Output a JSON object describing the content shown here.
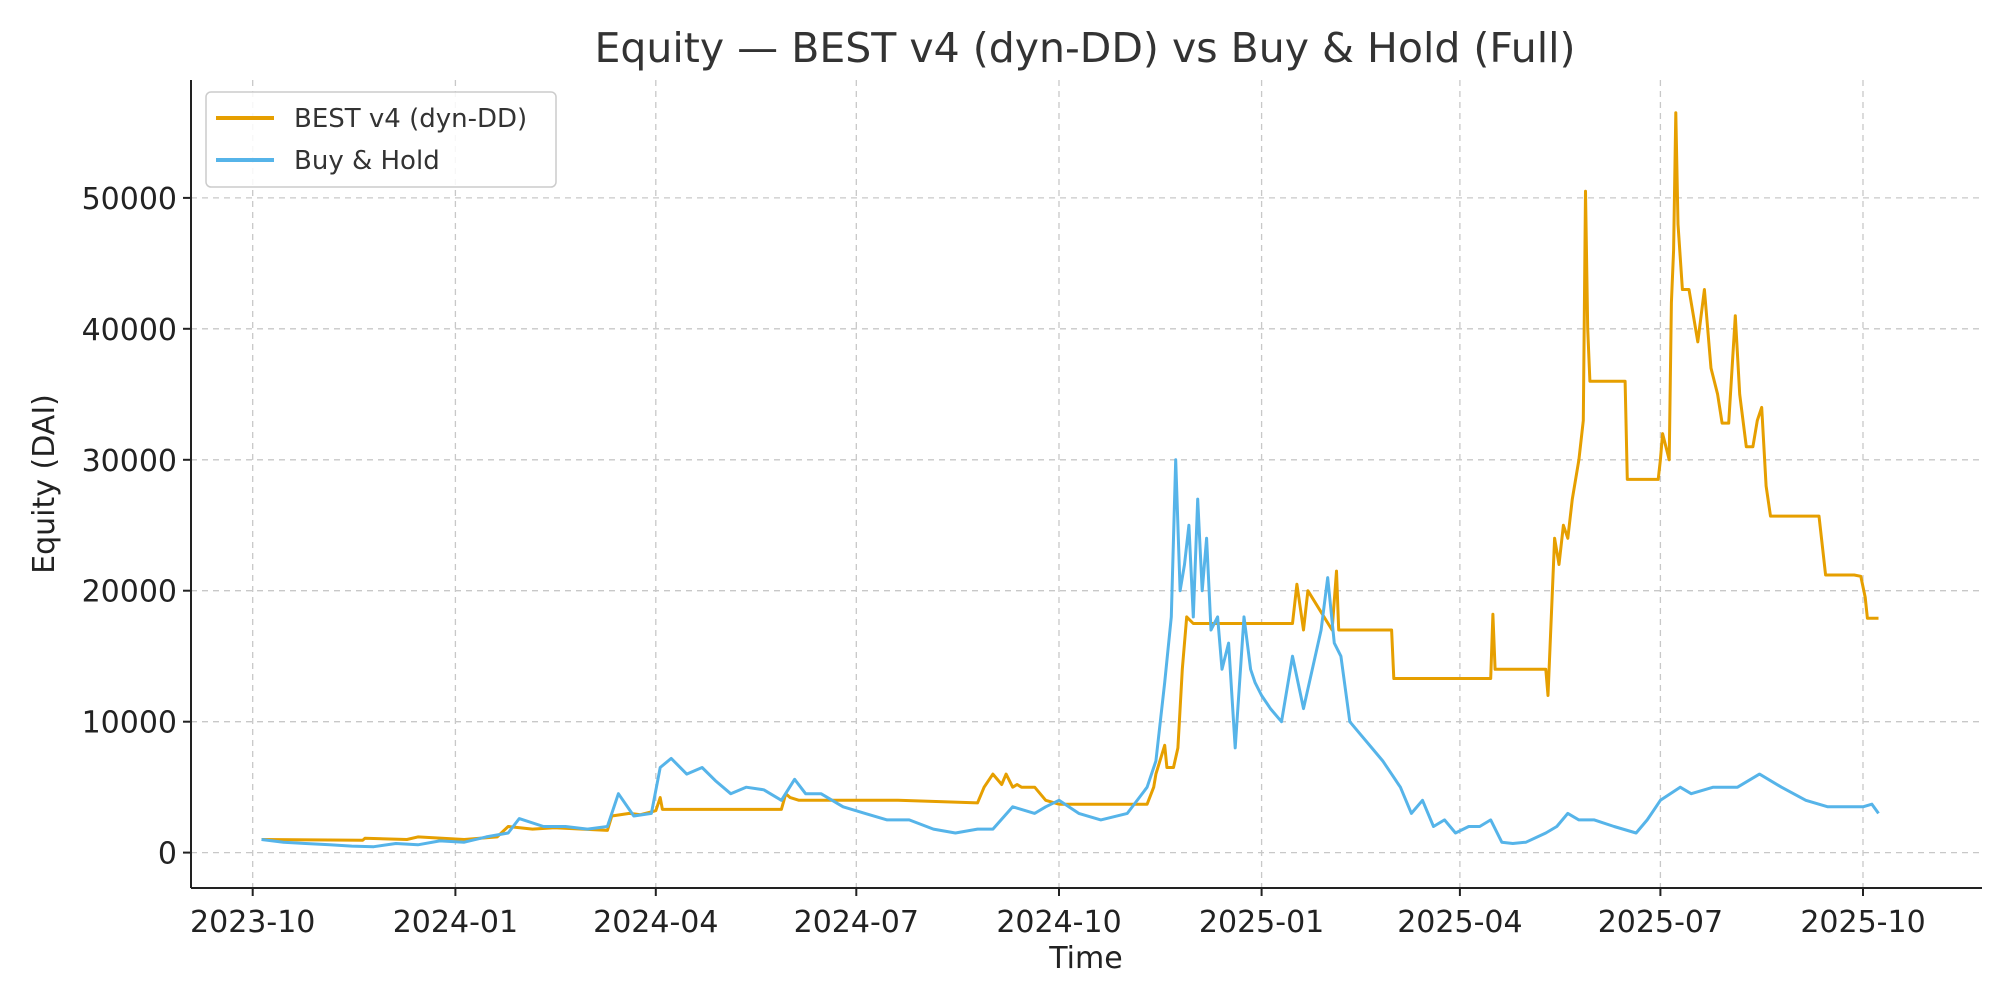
{
  "colors": {
    "strategy": "#E69F00",
    "buy_hold": "#56B4E9",
    "grid": "#c8c8c8",
    "axis": "#222222"
  },
  "chart_data": {
    "type": "line",
    "title": "Equity — BEST v4 (dyn-DD) vs Buy & Hold (Full)",
    "xlabel": "Time",
    "ylabel": "Equity (DAI)",
    "x_ticks": [
      "2023-10-01",
      "2024-01-01",
      "2024-04-01",
      "2024-07-01",
      "2024-10-01",
      "2025-01-01",
      "2025-04-01",
      "2025-07-01",
      "2025-10-01"
    ],
    "x_tick_labels": [
      "2023-10",
      "2024-01",
      "2024-04",
      "2024-07",
      "2024-10",
      "2025-01",
      "2025-04",
      "2025-07",
      "2025-10"
    ],
    "y_ticks": [
      0,
      10000,
      20000,
      30000,
      40000,
      50000
    ],
    "y_tick_labels": [
      "0",
      "10000",
      "20000",
      "30000",
      "40000",
      "50000"
    ],
    "xlim": [
      "2023-09-03",
      "2025-11-24"
    ],
    "ylim": [
      -2700,
      59000
    ],
    "grid": true,
    "legend_position": "top-left",
    "series": [
      {
        "name": "BEST v4 (dyn-DD)",
        "color": "#E69F00",
        "x": [
          "2023-10-05",
          "2023-11-20",
          "2023-11-21",
          "2023-12-10",
          "2023-12-15",
          "2024-01-05",
          "2024-01-20",
          "2024-01-25",
          "2024-02-05",
          "2024-02-15",
          "2024-03-10",
          "2024-03-12",
          "2024-03-20",
          "2024-03-25",
          "2024-04-01",
          "2024-04-03",
          "2024-04-04",
          "2024-04-10",
          "2024-05-28",
          "2024-05-30",
          "2024-06-01",
          "2024-06-05",
          "2024-07-20",
          "2024-08-25",
          "2024-08-28",
          "2024-09-01",
          "2024-09-05",
          "2024-09-07",
          "2024-09-10",
          "2024-09-12",
          "2024-09-14",
          "2024-09-20",
          "2024-09-25",
          "2024-10-01",
          "2024-11-10",
          "2024-11-13",
          "2024-11-14",
          "2024-11-18",
          "2024-11-19",
          "2024-11-22",
          "2024-11-24",
          "2024-11-26",
          "2024-11-28",
          "2024-12-01",
          "2024-12-15",
          "2025-01-15",
          "2025-01-17",
          "2025-01-20",
          "2025-01-22",
          "2025-02-02",
          "2025-02-04",
          "2025-02-05",
          "2025-02-07",
          "2025-03-01",
          "2025-03-02",
          "2025-04-15",
          "2025-04-16",
          "2025-04-17",
          "2025-05-10",
          "2025-05-11",
          "2025-05-13",
          "2025-05-14",
          "2025-05-16",
          "2025-05-18",
          "2025-05-20",
          "2025-05-22",
          "2025-05-25",
          "2025-05-27",
          "2025-05-28",
          "2025-05-29",
          "2025-05-30",
          "2025-06-15",
          "2025-06-16",
          "2025-06-30",
          "2025-07-01",
          "2025-07-02",
          "2025-07-05",
          "2025-07-06",
          "2025-07-07",
          "2025-07-08",
          "2025-07-09",
          "2025-07-11",
          "2025-07-12",
          "2025-07-14",
          "2025-07-18",
          "2025-07-21",
          "2025-07-24",
          "2025-07-27",
          "2025-07-29",
          "2025-08-01",
          "2025-08-04",
          "2025-08-06",
          "2025-08-09",
          "2025-08-12",
          "2025-08-14",
          "2025-08-16",
          "2025-08-18",
          "2025-08-20",
          "2025-09-10",
          "2025-09-11",
          "2025-09-14",
          "2025-09-15",
          "2025-09-20",
          "2025-09-27",
          "2025-09-30",
          "2025-10-02",
          "2025-10-03",
          "2025-10-08"
        ],
        "y": [
          1000,
          950,
          1100,
          1000,
          1200,
          1000,
          1200,
          2000,
          1800,
          1900,
          1700,
          2800,
          3000,
          2900,
          3200,
          4200,
          3300,
          3300,
          3300,
          4500,
          4200,
          4000,
          4000,
          3800,
          5000,
          6000,
          5200,
          6000,
          5000,
          5200,
          5000,
          5000,
          4000,
          3700,
          3700,
          5000,
          6000,
          8200,
          6500,
          6500,
          8000,
          14000,
          18000,
          17500,
          17500,
          17500,
          20500,
          17000,
          20000,
          17000,
          21500,
          17000,
          17000,
          17000,
          13300,
          13300,
          18200,
          14000,
          14000,
          12000,
          20000,
          24000,
          22000,
          25000,
          24000,
          27000,
          30000,
          33000,
          50500,
          40000,
          36000,
          36000,
          28500,
          28500,
          30000,
          32000,
          30000,
          42000,
          46000,
          56500,
          48000,
          43000,
          43000,
          43000,
          39000,
          43000,
          37000,
          35000,
          32800,
          32800,
          41000,
          35000,
          31000,
          31000,
          33000,
          34000,
          28000,
          25700,
          25700,
          25700,
          21200,
          21200,
          21200,
          21200,
          21100,
          19500,
          17900,
          17900
        ]
      },
      {
        "name": "Buy & Hold",
        "color": "#56B4E9",
        "x": [
          "2023-10-05",
          "2023-10-15",
          "2023-10-25",
          "2023-11-05",
          "2023-11-15",
          "2023-11-25",
          "2023-12-05",
          "2023-12-15",
          "2023-12-25",
          "2024-01-05",
          "2024-01-15",
          "2024-01-25",
          "2024-01-30",
          "2024-02-10",
          "2024-02-20",
          "2024-03-01",
          "2024-03-10",
          "2024-03-15",
          "2024-03-22",
          "2024-03-30",
          "2024-04-03",
          "2024-04-08",
          "2024-04-15",
          "2024-04-22",
          "2024-04-28",
          "2024-05-05",
          "2024-05-12",
          "2024-05-20",
          "2024-05-28",
          "2024-06-03",
          "2024-06-08",
          "2024-06-15",
          "2024-06-25",
          "2024-07-05",
          "2024-07-15",
          "2024-07-25",
          "2024-08-05",
          "2024-08-15",
          "2024-08-25",
          "2024-09-01",
          "2024-09-10",
          "2024-09-20",
          "2024-09-25",
          "2024-10-01",
          "2024-10-10",
          "2024-10-20",
          "2024-11-01",
          "2024-11-10",
          "2024-11-14",
          "2024-11-18",
          "2024-11-21",
          "2024-11-23",
          "2024-11-25",
          "2024-11-27",
          "2024-11-29",
          "2024-12-01",
          "2024-12-03",
          "2024-12-05",
          "2024-12-07",
          "2024-12-09",
          "2024-12-12",
          "2024-12-14",
          "2024-12-17",
          "2024-12-20",
          "2024-12-24",
          "2024-12-27",
          "2024-12-29",
          "2025-01-01",
          "2025-01-05",
          "2025-01-10",
          "2025-01-15",
          "2025-01-20",
          "2025-01-24",
          "2025-01-28",
          "2025-01-31",
          "2025-02-03",
          "2025-02-06",
          "2025-02-10",
          "2025-02-15",
          "2025-02-20",
          "2025-02-25",
          "2025-03-01",
          "2025-03-05",
          "2025-03-10",
          "2025-03-15",
          "2025-03-20",
          "2025-03-25",
          "2025-03-30",
          "2025-04-05",
          "2025-04-10",
          "2025-04-15",
          "2025-04-20",
          "2025-04-25",
          "2025-05-01",
          "2025-05-10",
          "2025-05-15",
          "2025-05-20",
          "2025-05-25",
          "2025-06-01",
          "2025-06-10",
          "2025-06-20",
          "2025-06-25",
          "2025-07-01",
          "2025-07-10",
          "2025-07-15",
          "2025-07-25",
          "2025-08-05",
          "2025-08-15",
          "2025-08-25",
          "2025-09-05",
          "2025-09-15",
          "2025-09-25",
          "2025-10-01",
          "2025-10-05",
          "2025-10-08"
        ],
        "y": [
          1000,
          800,
          700,
          600,
          500,
          450,
          700,
          600,
          900,
          800,
          1200,
          1500,
          2600,
          2000,
          2000,
          1800,
          2000,
          4500,
          2800,
          3000,
          6500,
          7200,
          6000,
          6500,
          5500,
          4500,
          5000,
          4800,
          4000,
          5600,
          4500,
          4500,
          3500,
          3000,
          2500,
          2500,
          1800,
          1500,
          1800,
          1800,
          3500,
          3000,
          3500,
          4000,
          3000,
          2500,
          3000,
          5000,
          7000,
          13000,
          18000,
          30000,
          20000,
          22000,
          25000,
          18000,
          27000,
          20000,
          24000,
          17000,
          18000,
          14000,
          16000,
          8000,
          18000,
          14000,
          13000,
          12000,
          11000,
          10000,
          15000,
          11000,
          14000,
          17000,
          21000,
          16000,
          15000,
          10000,
          9000,
          8000,
          7000,
          6000,
          5000,
          3000,
          4000,
          2000,
          2500,
          1500,
          2000,
          2000,
          2500,
          800,
          700,
          800,
          1500,
          2000,
          3000,
          2500,
          2500,
          2000,
          1500,
          2500,
          4000,
          5000,
          4500,
          5000,
          5000,
          6000,
          5000,
          4000,
          3500,
          3500,
          3500,
          3700,
          3000
        ]
      }
    ]
  }
}
